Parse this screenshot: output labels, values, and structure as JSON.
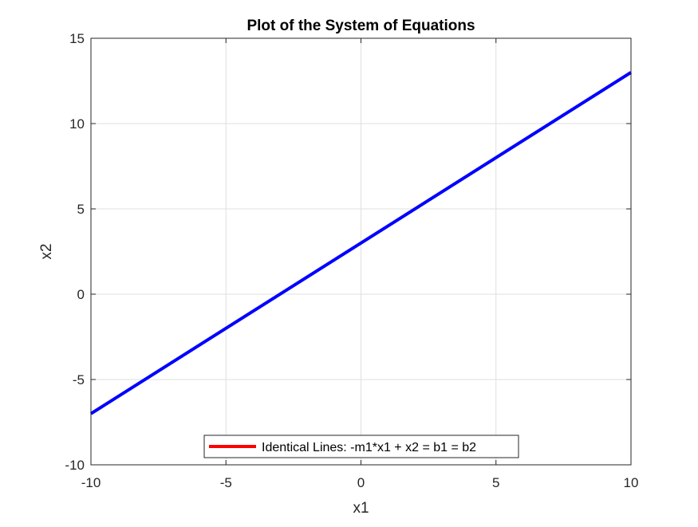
{
  "chart_data": {
    "type": "line",
    "title": "Plot of the System of Equations",
    "xlabel": "x1",
    "ylabel": "x2",
    "xlim": [
      -10,
      10
    ],
    "ylim": [
      -10,
      15
    ],
    "xticks": [
      -10,
      -5,
      0,
      5,
      10
    ],
    "yticks": [
      -10,
      -5,
      0,
      5,
      10,
      15
    ],
    "xtick_labels": [
      "-10",
      "-5",
      "0",
      "5",
      "10"
    ],
    "ytick_labels": [
      "-10",
      "-5",
      "0",
      "5",
      "10",
      "15"
    ],
    "grid": true,
    "legend_position": "bottom-center",
    "series": [
      {
        "name": "",
        "color": "#0000ff",
        "x": [
          -10,
          10
        ],
        "y": [
          -7,
          13
        ]
      }
    ],
    "legend": [
      {
        "label": "Identical Lines: -m1*x1 + x2 = b1 = b2",
        "color": "#ff0000"
      }
    ]
  }
}
